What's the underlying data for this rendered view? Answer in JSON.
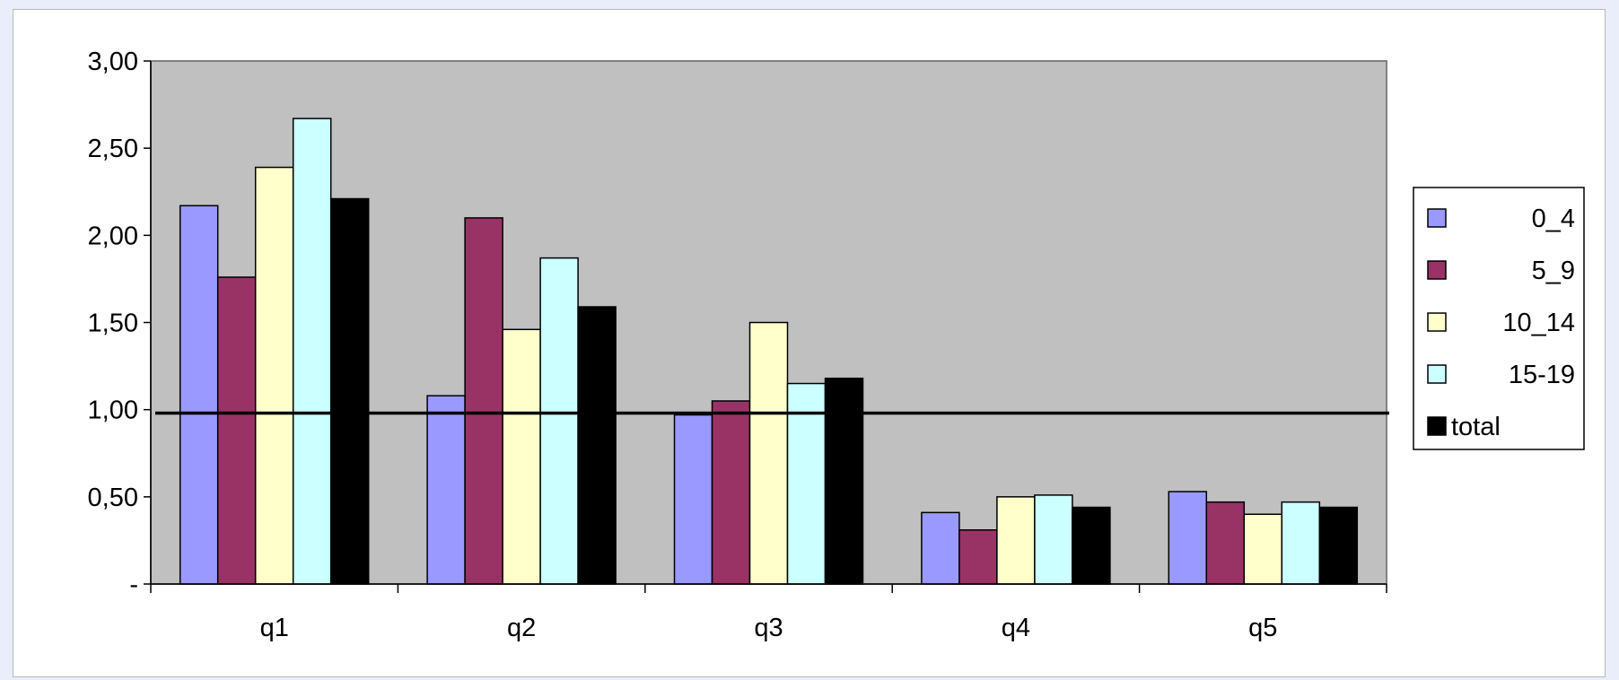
{
  "chart_data": {
    "type": "bar",
    "categories": [
      "q1",
      "q2",
      "q3",
      "q4",
      "q5"
    ],
    "series": [
      {
        "name": "0_4",
        "color": "#9999ff",
        "values": [
          2.17,
          1.08,
          0.97,
          0.41,
          0.53
        ]
      },
      {
        "name": "5_9",
        "color": "#993366",
        "values": [
          1.76,
          2.1,
          1.05,
          0.31,
          0.47
        ]
      },
      {
        "name": "10_14",
        "color": "#ffffcc",
        "values": [
          2.39,
          1.46,
          1.5,
          0.5,
          0.4
        ]
      },
      {
        "name": "15-19",
        "color": "#ccffff",
        "values": [
          2.67,
          1.87,
          1.15,
          0.51,
          0.47
        ]
      },
      {
        "name": "total",
        "color": "#000000",
        "values": [
          2.21,
          1.59,
          1.18,
          0.44,
          0.44
        ]
      }
    ],
    "y_ticks": [
      {
        "value": 0,
        "label": "-"
      },
      {
        "value": 0.5,
        "label": "0,50"
      },
      {
        "value": 1.0,
        "label": "1,00"
      },
      {
        "value": 1.5,
        "label": "1,50"
      },
      {
        "value": 2.0,
        "label": "2,00"
      },
      {
        "value": 2.5,
        "label": "2,50"
      },
      {
        "value": 3.0,
        "label": "3,00"
      }
    ],
    "ylim": [
      0,
      3.0
    ],
    "reference_line": 0.98,
    "plot_background": "#c0c0c0",
    "grid": false,
    "legend_position": "right"
  }
}
